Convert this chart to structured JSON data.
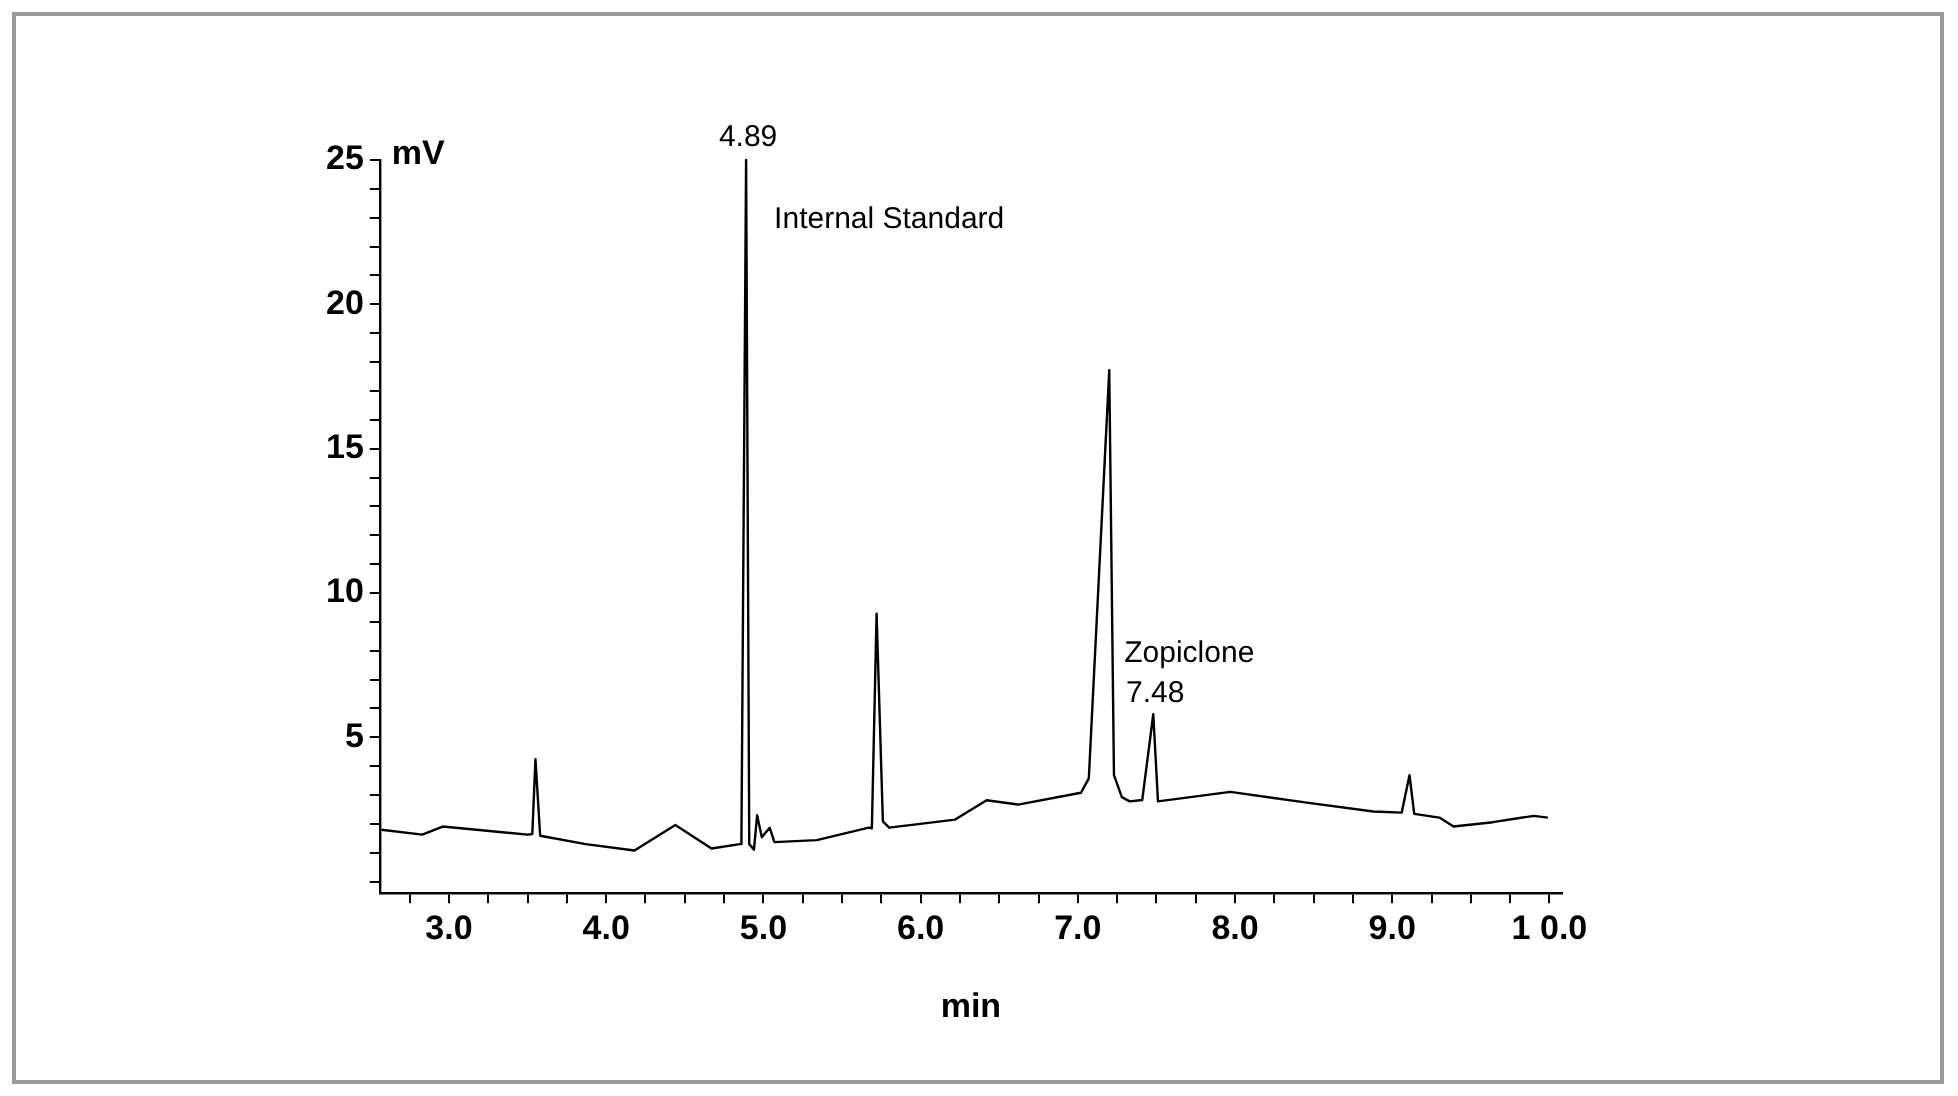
{
  "chart_data": {
    "type": "line",
    "xlabel": "min",
    "ylabel": "mV",
    "color": "#000000",
    "x": [
      2.57,
      2.83,
      2.96,
      3.5,
      3.53,
      3.55,
      3.58,
      3.87,
      4.18,
      4.44,
      4.67,
      4.85,
      4.86,
      4.89,
      4.91,
      4.94,
      4.96,
      4.99,
      5.04,
      5.07,
      5.34,
      5.67,
      5.69,
      5.72,
      5.76,
      5.8,
      6.22,
      6.42,
      6.62,
      7.02,
      7.07,
      7.2,
      7.23,
      7.28,
      7.33,
      7.41,
      7.48,
      7.51,
      7.97,
      8.48,
      8.88,
      9.06,
      9.11,
      9.14,
      9.3,
      9.39,
      9.64,
      9.9,
      9.99
    ],
    "values": [
      1.8,
      1.63,
      1.91,
      1.63,
      1.65,
      4.24,
      1.59,
      1.3,
      1.08,
      1.96,
      1.15,
      1.3,
      1.3,
      25,
      1.3,
      1.11,
      2.3,
      1.54,
      1.87,
      1.37,
      1.44,
      1.87,
      1.85,
      9.28,
      2.09,
      1.87,
      2.15,
      2.82,
      2.67,
      3.08,
      3.58,
      17.72,
      3.69,
      2.93,
      2.78,
      2.83,
      5.8,
      2.78,
      3.11,
      2.72,
      2.43,
      2.39,
      3.69,
      2.35,
      2.22,
      1.91,
      2.06,
      2.28,
      2.22
    ],
    "xlim": [
      2.56,
      10.08
    ],
    "ylim": [
      -0.4,
      25
    ],
    "xticks": [
      {
        "value": 2.75,
        "label": null
      },
      {
        "value": 3,
        "label": "3.0"
      },
      {
        "value": 3.25,
        "label": null
      },
      {
        "value": 3.5,
        "label": null
      },
      {
        "value": 3.75,
        "label": null
      },
      {
        "value": 4,
        "label": "4.0"
      },
      {
        "value": 4.25,
        "label": null
      },
      {
        "value": 4.5,
        "label": null
      },
      {
        "value": 4.75,
        "label": null
      },
      {
        "value": 5,
        "label": "5.0"
      },
      {
        "value": 5.25,
        "label": null
      },
      {
        "value": 5.5,
        "label": null
      },
      {
        "value": 5.75,
        "label": null
      },
      {
        "value": 6,
        "label": "6.0"
      },
      {
        "value": 6.25,
        "label": null
      },
      {
        "value": 6.5,
        "label": null
      },
      {
        "value": 6.75,
        "label": null
      },
      {
        "value": 7,
        "label": "7.0"
      },
      {
        "value": 7.25,
        "label": null
      },
      {
        "value": 7.5,
        "label": null
      },
      {
        "value": 7.75,
        "label": null
      },
      {
        "value": 8,
        "label": "8.0"
      },
      {
        "value": 8.25,
        "label": null
      },
      {
        "value": 8.5,
        "label": null
      },
      {
        "value": 8.75,
        "label": null
      },
      {
        "value": 9,
        "label": "9.0"
      },
      {
        "value": 9.25,
        "label": null
      },
      {
        "value": 9.5,
        "label": null
      },
      {
        "value": 9.75,
        "label": null
      },
      {
        "value": 10,
        "label": "1 0.0"
      }
    ],
    "yticks": [
      {
        "value": 0,
        "label": null
      },
      {
        "value": 1,
        "label": null
      },
      {
        "value": 2,
        "label": null
      },
      {
        "value": 3,
        "label": null
      },
      {
        "value": 4,
        "label": null
      },
      5,
      {
        "value": 6,
        "label": null
      },
      {
        "value": 7,
        "label": null
      },
      {
        "value": 8,
        "label": null
      },
      {
        "value": 9,
        "label": null
      },
      10,
      {
        "value": 11,
        "label": null
      },
      {
        "value": 12,
        "label": null
      },
      {
        "value": 13,
        "label": null
      },
      {
        "value": 14,
        "label": null
      },
      15,
      {
        "value": 16,
        "label": null
      },
      {
        "value": 17,
        "label": null
      },
      {
        "value": 18,
        "label": null
      },
      {
        "value": 19,
        "label": null
      },
      20,
      {
        "value": 21,
        "label": null
      },
      {
        "value": 22,
        "label": null
      },
      {
        "value": 23,
        "label": null
      },
      {
        "value": 24,
        "label": null
      },
      25
    ],
    "annotations": [
      {
        "text": "4.89",
        "x": 4.89,
        "y": 25
      },
      "Internal Standard",
      "Zopiclone",
      {
        "text": "7.48",
        "x": 7.48,
        "y": 5.8
      }
    ]
  }
}
